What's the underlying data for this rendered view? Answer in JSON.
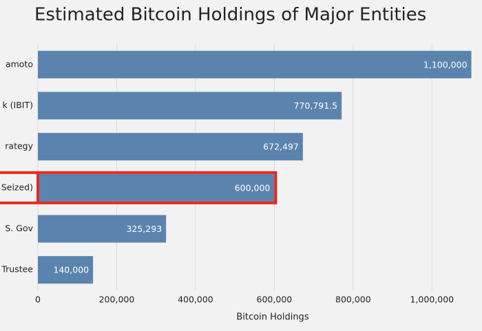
{
  "chart_data": {
    "type": "bar",
    "orientation": "horizontal",
    "title": "Estimated Bitcoin Holdings of Major Entities",
    "x_label": "Bitcoin Holdings",
    "categories": [
      "amoto",
      "k (IBIT)",
      "rategy",
      "Seized)",
      "S. Gov",
      "Trustee"
    ],
    "values": [
      1100000,
      770791.5,
      672497,
      600000,
      325293,
      140000
    ],
    "value_labels": [
      "1,100,000",
      "770,791.5",
      "672,497",
      "600,000",
      "325,293",
      "140,000"
    ],
    "color": "#5a84ad",
    "highlight_color": "#e8281e",
    "highlight_index": 3,
    "xlim": [
      0,
      1127000
    ],
    "xticks": [
      0,
      {
        "value": 200000,
        "label": "200,000"
      },
      {
        "value": 400000,
        "label": "400,000"
      },
      {
        "value": 600000,
        "label": "600,000"
      },
      {
        "value": 800000,
        "label": "800,000"
      },
      {
        "value": 1000000,
        "label": "1,000,000"
      }
    ],
    "grid": true
  }
}
